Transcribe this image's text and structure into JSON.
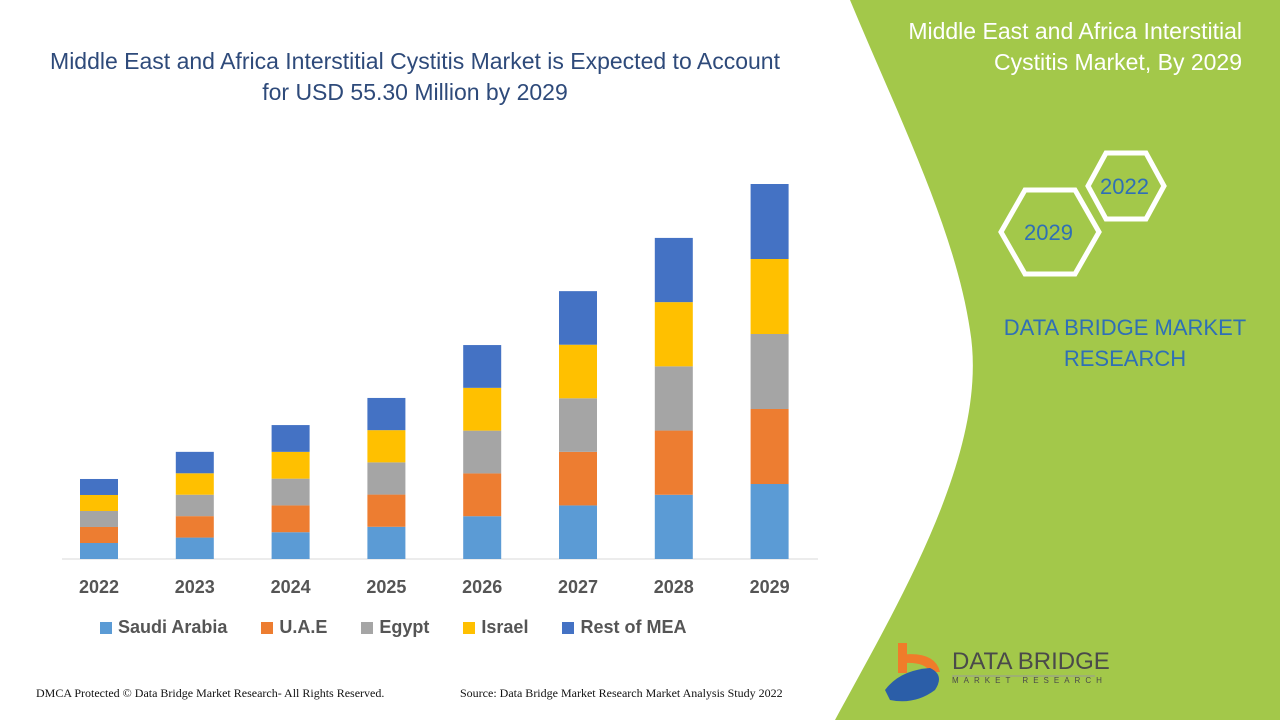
{
  "header": {
    "title": "Middle East and Africa Interstitial Cystitis Market is Expected to Account for USD 55.30 Million by 2029"
  },
  "side": {
    "title": "Middle East and Africa Interstitial Cystitis Market, By 2029",
    "hex_top": "2022",
    "hex_bottom": "2029",
    "brand": "DATA BRIDGE MARKET RESEARCH"
  },
  "footer": {
    "left": "DMCA Protected © Data Bridge Market Research- All Rights Reserved.",
    "right": "Source: Data Bridge Market Research Market Analysis Study 2022"
  },
  "logo": {
    "name": "DATA BRIDGE",
    "sub": "MARKET RESEARCH"
  },
  "colors": {
    "panel": "#a3c84a",
    "title": "#2e4a7a"
  },
  "chart_data": {
    "type": "bar",
    "stacked": true,
    "title": "",
    "xlabel": "",
    "ylabel": "",
    "grid": false,
    "legend": "bottom",
    "categories": [
      "2022",
      "2023",
      "2024",
      "2025",
      "2026",
      "2027",
      "2028",
      "2029"
    ],
    "series": [
      {
        "name": "Saudi Arabia",
        "color": "#5b9bd5",
        "values": [
          2.36,
          3.16,
          3.95,
          4.75,
          6.31,
          7.9,
          9.47,
          11.06
        ]
      },
      {
        "name": "U.A.E",
        "color": "#ed7d31",
        "values": [
          2.36,
          3.16,
          3.95,
          4.75,
          6.31,
          7.9,
          9.47,
          11.06
        ]
      },
      {
        "name": "Egypt",
        "color": "#a5a5a5",
        "values": [
          2.36,
          3.16,
          3.95,
          4.75,
          6.31,
          7.9,
          9.47,
          11.06
        ]
      },
      {
        "name": "Israel",
        "color": "#ffc000",
        "values": [
          2.36,
          3.16,
          3.95,
          4.75,
          6.31,
          7.9,
          9.47,
          11.06
        ]
      },
      {
        "name": "Rest of MEA",
        "color": "#4472c4",
        "values": [
          2.36,
          3.16,
          3.95,
          4.75,
          6.31,
          7.9,
          9.47,
          11.06
        ]
      }
    ],
    "ylim": [
      0,
      55.3
    ]
  }
}
